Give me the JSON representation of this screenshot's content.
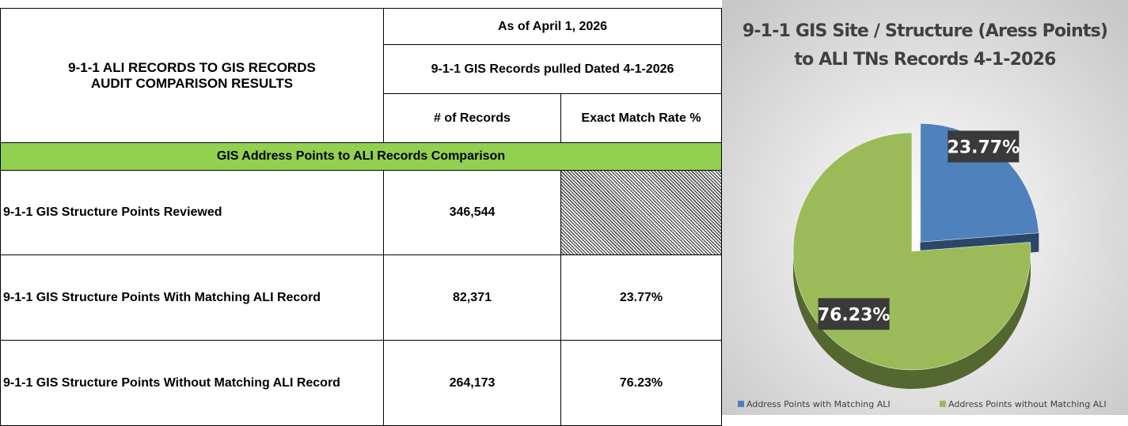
{
  "table": {
    "title_lines": [
      "9-1-1 ALI RECORDS TO GIS RECORDS",
      "AUDIT COMPARISON RESULTS"
    ],
    "as_of": "As of April 1, 2026",
    "pulled": "9-1-1 GIS Records pulled Dated 4-1-2026",
    "columns": [
      "# of Records",
      "Exact Match Rate %"
    ],
    "section": "GIS Address Points to ALI Records Comparison",
    "rows": [
      [
        "9-1-1 GIS Structure Points Reviewed",
        "346,544"
      ],
      [
        "9-1-1 GIS Structure Points With Matching ALI Record",
        "82,371",
        "23.77%"
      ],
      [
        "9-1-1 GIS Structure Points Without Matching ALI Record",
        "264,173",
        "76.23%"
      ]
    ]
  },
  "chart_data": {
    "type": "pie",
    "title_lines": [
      "9-1-1 GIS Site / Structure (Aress Points)",
      "to ALI TNs Records 4-1-2026"
    ],
    "categories": [
      "Address Points with Matching ALI",
      "Address Points without Matching ALI"
    ],
    "values": [
      23.77,
      76.23
    ],
    "value_labels": [
      "23.77%",
      "76.23%"
    ],
    "colors": [
      "#4f81bd",
      "#9bbb59"
    ],
    "legend": "bottom"
  }
}
